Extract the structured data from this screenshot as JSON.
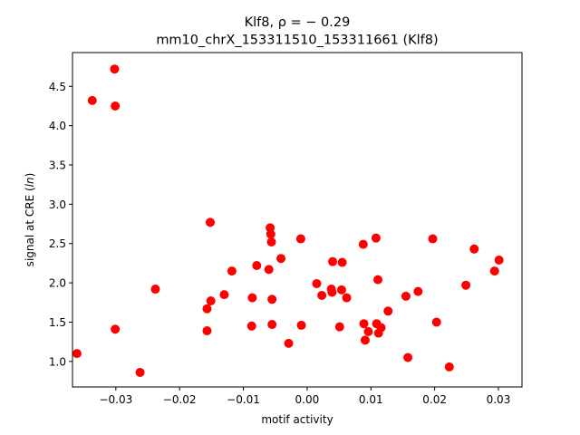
{
  "chart_data": {
    "type": "scatter",
    "title": "Klf8, ρ = − 0.29",
    "subtitle": "mm10_chrX_153311510_153311661 (Klf8)",
    "xlabel": "motif activity",
    "ylabel_prefix": "signal at CRE (",
    "ylabel_italic": "ln",
    "ylabel_suffix": ")",
    "xlim": [
      -0.0368,
      0.0337
    ],
    "ylim": [
      0.675,
      4.93
    ],
    "x_ticks": [
      {
        "value": -0.03,
        "label": "−0.03"
      },
      {
        "value": -0.02,
        "label": "−0.02"
      },
      {
        "value": -0.01,
        "label": "−0.01"
      },
      {
        "value": 0.0,
        "label": "0.00"
      },
      {
        "value": 0.01,
        "label": "0.01"
      },
      {
        "value": 0.02,
        "label": "0.02"
      },
      {
        "value": 0.03,
        "label": "0.03"
      }
    ],
    "y_ticks": [
      {
        "value": 1.0,
        "label": "1.0"
      },
      {
        "value": 1.5,
        "label": "1.5"
      },
      {
        "value": 2.0,
        "label": "2.0"
      },
      {
        "value": 2.5,
        "label": "2.5"
      },
      {
        "value": 3.0,
        "label": "3.0"
      },
      {
        "value": 3.5,
        "label": "3.5"
      },
      {
        "value": 4.0,
        "label": "4.0"
      },
      {
        "value": 4.5,
        "label": "4.5"
      }
    ],
    "grid": false,
    "marker_color": "#ff0000",
    "points": [
      {
        "x": -0.0361,
        "y": 1.1
      },
      {
        "x": -0.0337,
        "y": 4.32
      },
      {
        "x": -0.0302,
        "y": 4.72
      },
      {
        "x": -0.0301,
        "y": 4.25
      },
      {
        "x": -0.0301,
        "y": 1.41
      },
      {
        "x": -0.0262,
        "y": 0.86
      },
      {
        "x": -0.0238,
        "y": 1.92
      },
      {
        "x": -0.0157,
        "y": 1.39
      },
      {
        "x": -0.0157,
        "y": 1.67
      },
      {
        "x": -0.0152,
        "y": 2.77
      },
      {
        "x": -0.0151,
        "y": 1.77
      },
      {
        "x": -0.013,
        "y": 1.85
      },
      {
        "x": -0.0118,
        "y": 2.15
      },
      {
        "x": -0.0087,
        "y": 1.45
      },
      {
        "x": -0.0086,
        "y": 1.81
      },
      {
        "x": -0.0079,
        "y": 2.22
      },
      {
        "x": -0.006,
        "y": 2.17
      },
      {
        "x": -0.0058,
        "y": 2.7
      },
      {
        "x": -0.0057,
        "y": 2.62
      },
      {
        "x": -0.0056,
        "y": 2.52
      },
      {
        "x": -0.0055,
        "y": 1.79
      },
      {
        "x": -0.0055,
        "y": 1.47
      },
      {
        "x": -0.0041,
        "y": 2.31
      },
      {
        "x": -0.0029,
        "y": 1.23
      },
      {
        "x": -0.001,
        "y": 2.56
      },
      {
        "x": -0.0009,
        "y": 1.46
      },
      {
        "x": 0.0015,
        "y": 1.99
      },
      {
        "x": 0.0023,
        "y": 1.84
      },
      {
        "x": 0.0038,
        "y": 1.92
      },
      {
        "x": 0.0039,
        "y": 1.88
      },
      {
        "x": 0.004,
        "y": 2.27
      },
      {
        "x": 0.0051,
        "y": 1.44
      },
      {
        "x": 0.0054,
        "y": 1.91
      },
      {
        "x": 0.0055,
        "y": 2.26
      },
      {
        "x": 0.0062,
        "y": 1.81
      },
      {
        "x": 0.0088,
        "y": 2.49
      },
      {
        "x": 0.0089,
        "y": 1.48
      },
      {
        "x": 0.0091,
        "y": 1.27
      },
      {
        "x": 0.0096,
        "y": 1.38
      },
      {
        "x": 0.0108,
        "y": 2.57
      },
      {
        "x": 0.0109,
        "y": 1.48
      },
      {
        "x": 0.0111,
        "y": 2.04
      },
      {
        "x": 0.0112,
        "y": 1.36
      },
      {
        "x": 0.0116,
        "y": 1.43
      },
      {
        "x": 0.0127,
        "y": 1.64
      },
      {
        "x": 0.0155,
        "y": 1.83
      },
      {
        "x": 0.0158,
        "y": 1.05
      },
      {
        "x": 0.0174,
        "y": 1.89
      },
      {
        "x": 0.0197,
        "y": 2.56
      },
      {
        "x": 0.0203,
        "y": 1.5
      },
      {
        "x": 0.0223,
        "y": 0.93
      },
      {
        "x": 0.0249,
        "y": 1.97
      },
      {
        "x": 0.0262,
        "y": 2.43
      },
      {
        "x": 0.0294,
        "y": 2.15
      },
      {
        "x": 0.0301,
        "y": 2.29
      }
    ]
  }
}
